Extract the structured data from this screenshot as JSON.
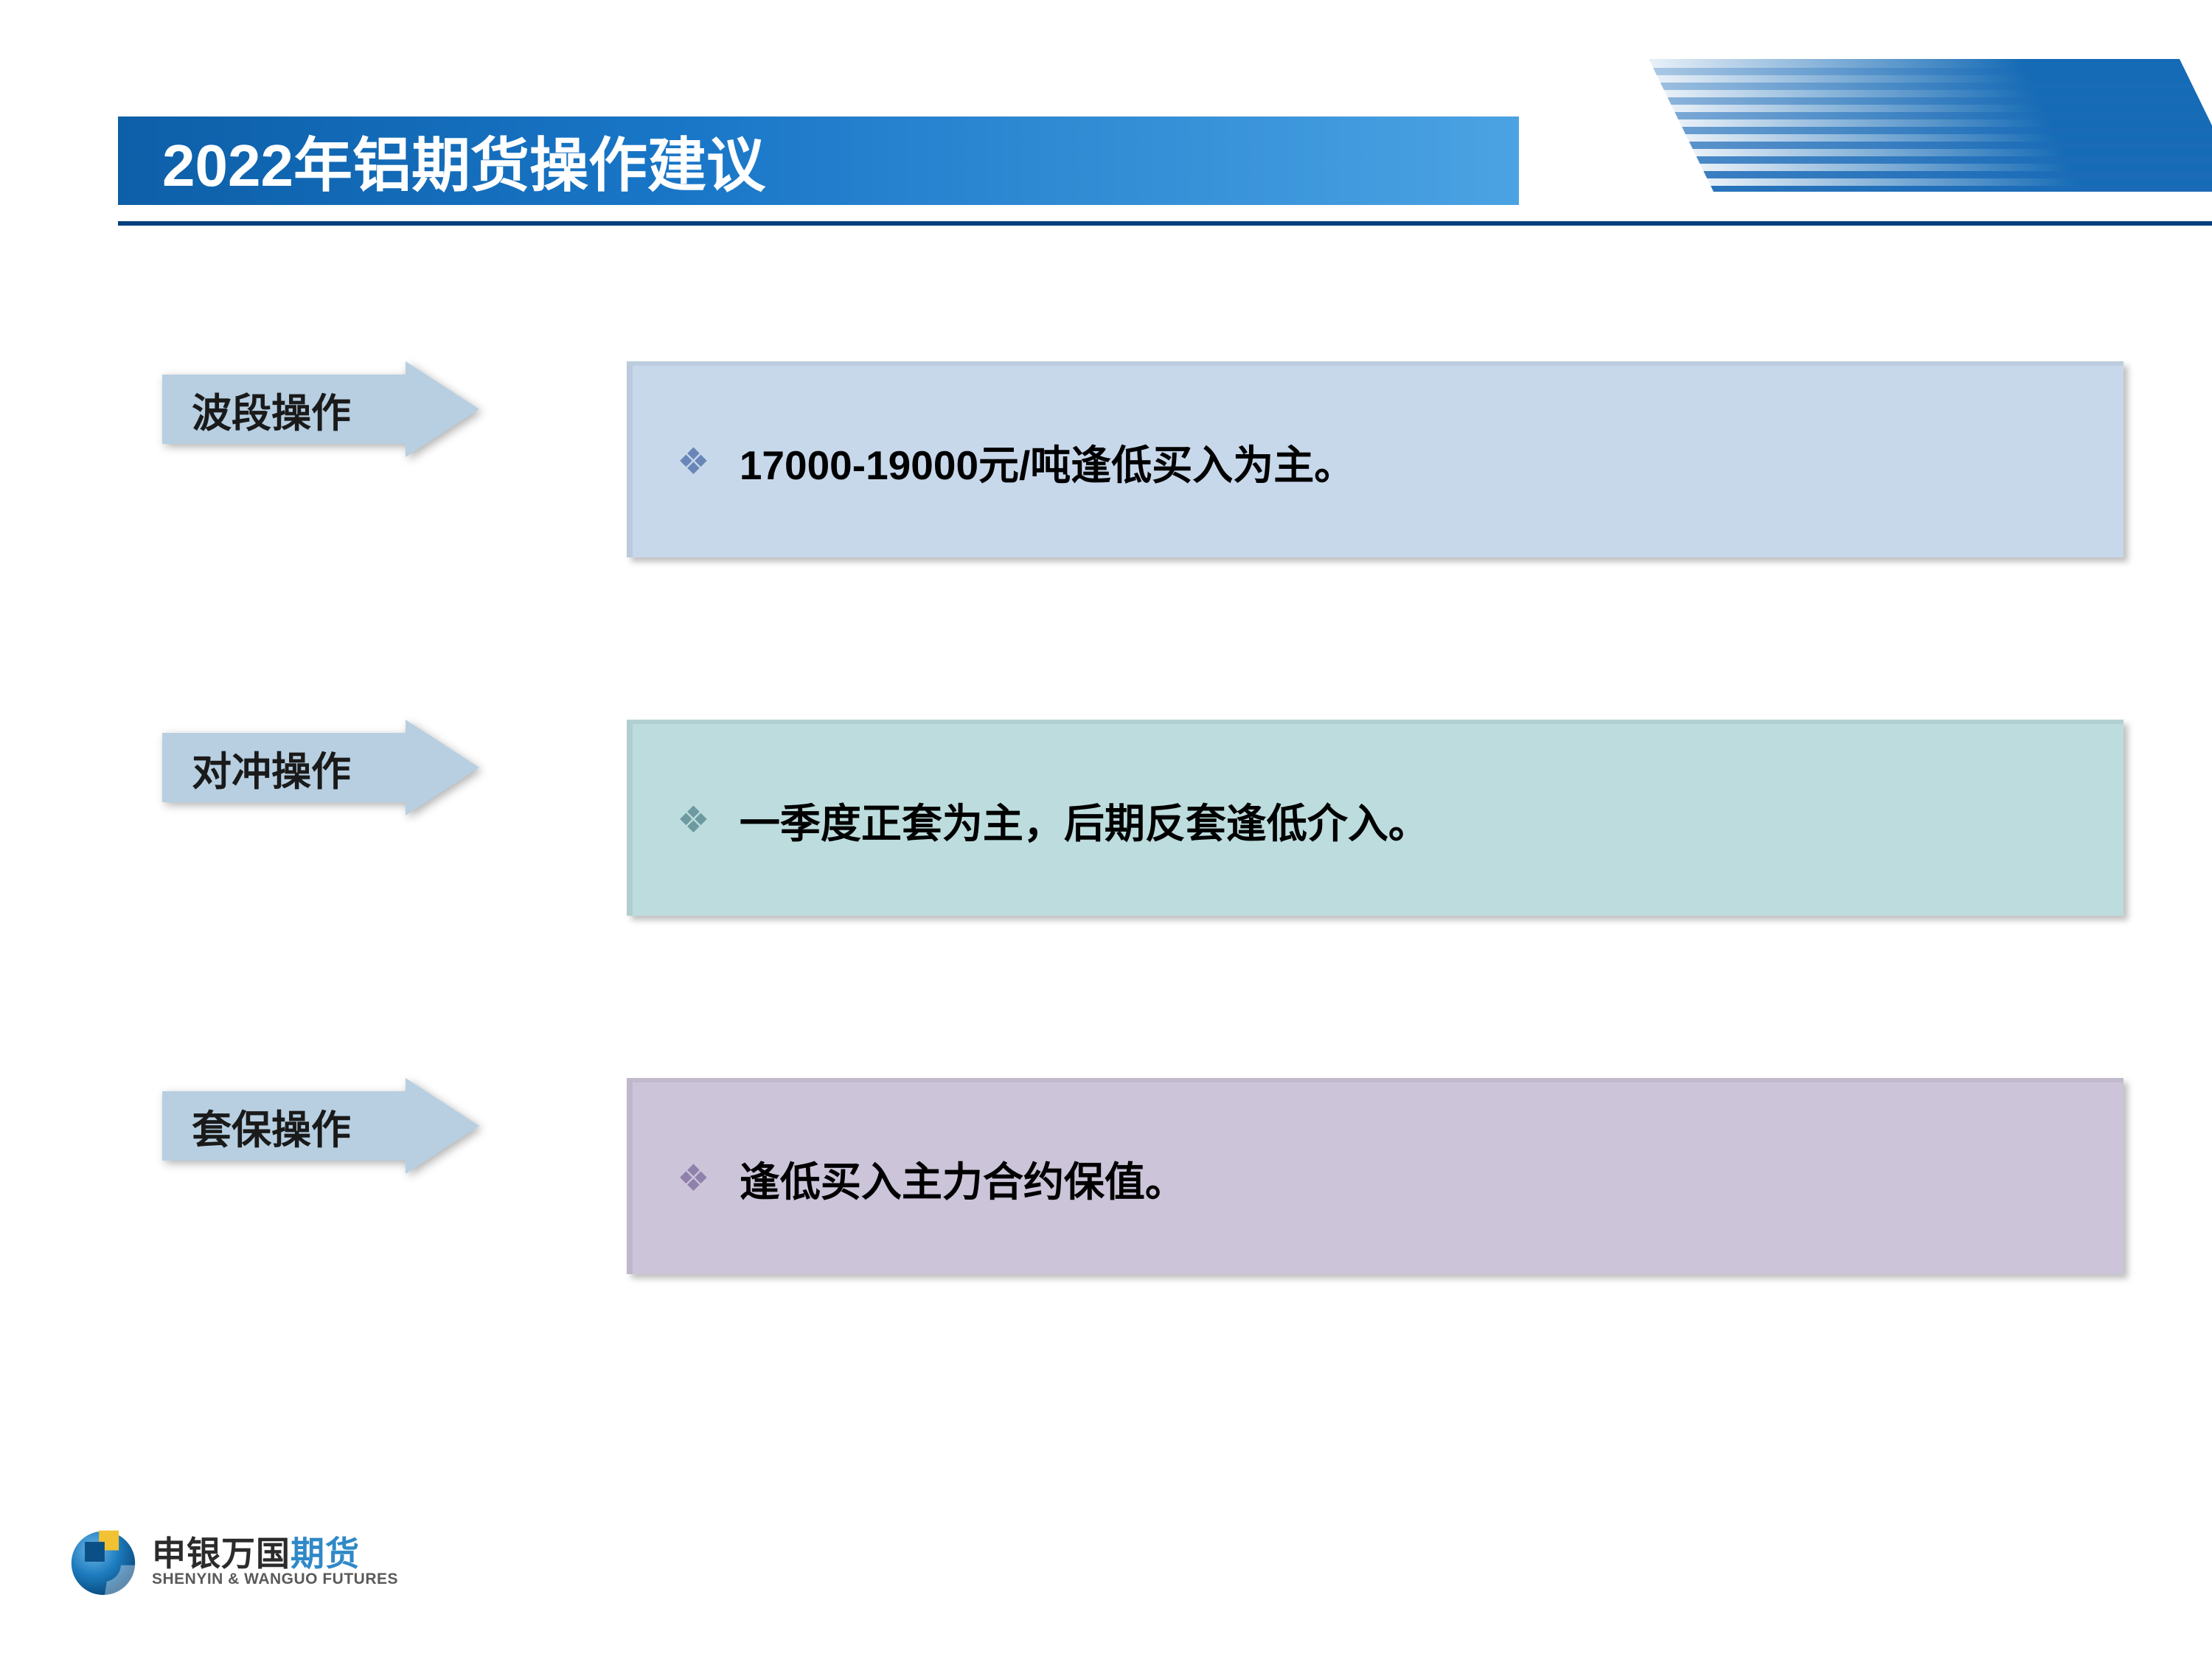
{
  "title": "2022年铝期货操作建议",
  "arrow_fill": "#b7cfe1",
  "rows": [
    {
      "label": "波段操作",
      "text": "17000-19000元/吨逢低买入为主。",
      "box_bg": "#c8d8eb",
      "bullet_color": "#6a86b8"
    },
    {
      "label": "对冲操作",
      "text": "一季度正套为主，后期反套逢低介入。",
      "box_bg": "#bddcdd",
      "bullet_color": "#6d9aa1"
    },
    {
      "label": "套保操作",
      "text": "逢低买入主力合约保值。",
      "box_bg": "#ccc4d9",
      "bullet_color": "#8f81ab"
    }
  ],
  "logo": {
    "brand_dark": "申银万国",
    "brand_blue": "期货",
    "brand_en": "SHENYIN & WANGUO FUTURES"
  },
  "header_decor": {
    "stripe_count": 9,
    "stripe_color": "#1c6bb8"
  }
}
